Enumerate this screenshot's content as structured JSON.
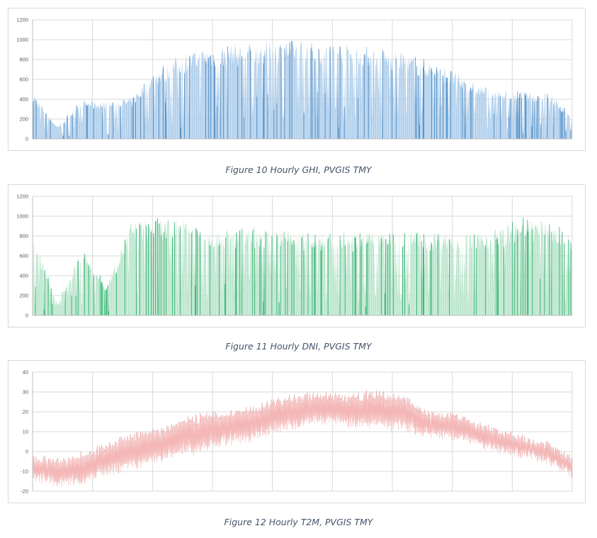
{
  "figures": [
    {
      "caption": "Figure 10 Hourly GHI, PVGIS TMY"
    },
    {
      "caption": "Figure 11 Hourly DNI, PVGIS TMY"
    },
    {
      "caption": "Figure 12 Hourly T2M, PVGIS TMY"
    }
  ],
  "chart_data": [
    {
      "type": "area",
      "series_color": "#9dc3e6",
      "line_color": "#2e75b6",
      "ylim": [
        0,
        1200
      ],
      "yticks": [
        "0",
        "200",
        "400",
        "600",
        "800",
        "1000",
        "1200"
      ],
      "x_gridlines": 9,
      "grid": true,
      "legend": "none",
      "envelope": {
        "hour": [
          0,
          400,
          800,
          1200,
          1600,
          2000,
          2400,
          2800,
          3200,
          3600,
          4000,
          4400,
          4800,
          5200,
          5600,
          6000,
          6400,
          6800,
          7200,
          7600,
          8000,
          8400,
          8760
        ],
        "peak": [
          480,
          130,
          400,
          380,
          420,
          700,
          860,
          920,
          960,
          980,
          1000,
          1000,
          980,
          960,
          920,
          880,
          800,
          700,
          560,
          500,
          480,
          470,
          240
        ]
      }
    },
    {
      "type": "area",
      "series_color": "#a9dfbf",
      "line_color": "#00a050",
      "ylim": [
        0,
        1200
      ],
      "yticks": [
        "0",
        "200",
        "400",
        "600",
        "800",
        "1000",
        "1200"
      ],
      "x_gridlines": 9,
      "grid": true,
      "legend": "none",
      "envelope": {
        "hour": [
          0,
          400,
          800,
          1200,
          1600,
          2000,
          2400,
          2800,
          3200,
          3600,
          4000,
          4400,
          4800,
          5200,
          5600,
          6000,
          6400,
          6800,
          7200,
          7600,
          8000,
          8400,
          8760
        ],
        "peak": [
          860,
          120,
          700,
          300,
          960,
          980,
          1000,
          900,
          880,
          900,
          880,
          860,
          850,
          840,
          860,
          880,
          860,
          850,
          830,
          900,
          1000,
          950,
          820
        ]
      }
    },
    {
      "type": "line",
      "series_color": "#f4b6b6",
      "line_color": "#c0504d",
      "ylim": [
        -20,
        40
      ],
      "yticks": [
        "-20",
        "-10",
        "0",
        "10",
        "20",
        "30",
        "40"
      ],
      "x_gridlines": 9,
      "grid": true,
      "legend": "none",
      "envelope": {
        "hour": [
          0,
          400,
          800,
          1200,
          1600,
          2000,
          2400,
          2800,
          3200,
          3600,
          4000,
          4400,
          4800,
          5200,
          5600,
          6000,
          6400,
          6800,
          7200,
          7600,
          8000,
          8400,
          8760
        ],
        "mean": [
          -8,
          -11,
          -9,
          -4,
          0,
          3,
          7,
          10,
          12,
          14,
          19,
          21,
          22,
          21,
          21,
          20,
          14,
          13,
          9,
          5,
          2,
          -1,
          -8
        ],
        "amplitude": [
          6,
          7,
          8,
          8,
          9,
          9,
          10,
          10,
          9,
          9,
          9,
          9,
          8,
          9,
          10,
          9,
          7,
          7,
          6,
          6,
          5,
          5,
          5
        ]
      }
    }
  ]
}
